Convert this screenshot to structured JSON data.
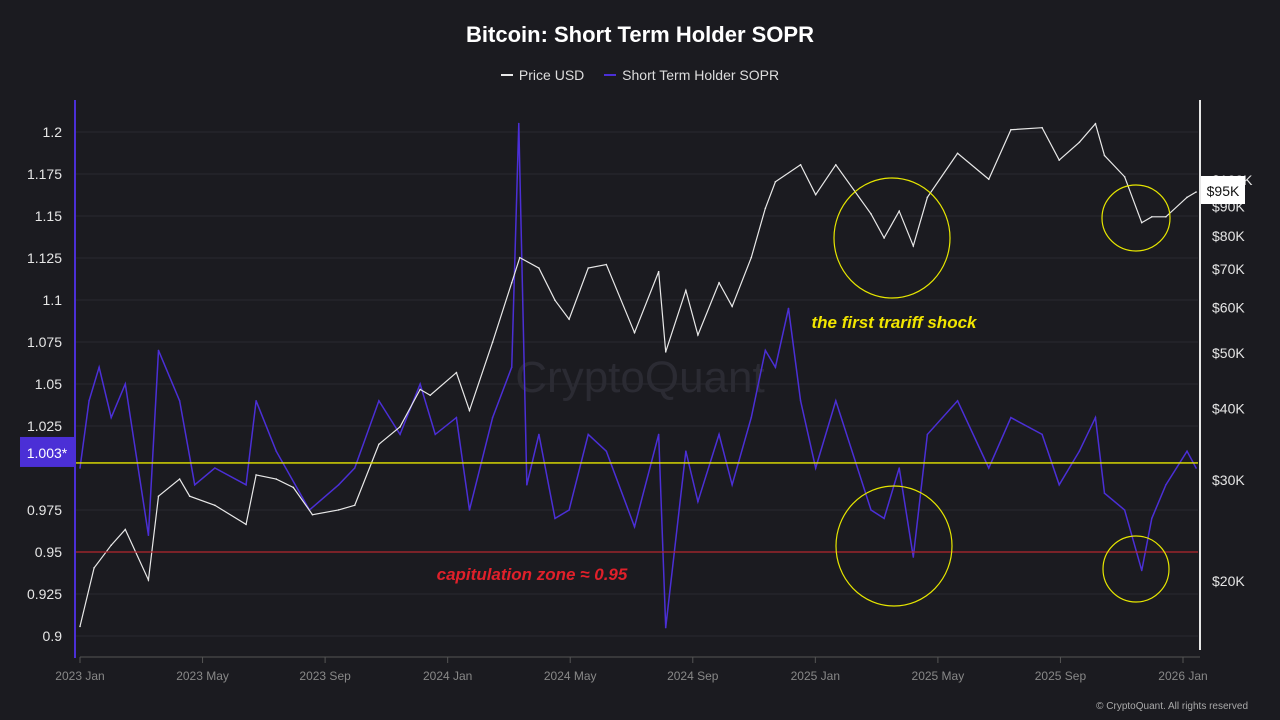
{
  "chart_data": {
    "type": "line",
    "title": "Bitcoin: Short Term Holder SOPR",
    "legend_position": "top",
    "grid": true,
    "x_ticks": [
      "2023 Jan",
      "2023 May",
      "2023 Sep",
      "2024 Jan",
      "2024 May",
      "2024 Sep",
      "2025 Jan",
      "2025 May",
      "2025 Sep",
      "2026 Jan"
    ],
    "left_axis": {
      "ticks": [
        "0.9",
        "0.925",
        "0.95",
        "0.975",
        "1.025",
        "1.05",
        "1.075",
        "1.1",
        "1.125",
        "1.15",
        "1.175",
        "1.2"
      ],
      "range": [
        0.9,
        1.2
      ],
      "current_label": "1.003*",
      "current_value": 1.003
    },
    "right_axis": {
      "scale": "log",
      "ticks": [
        [
          "$20K",
          20
        ],
        [
          "$30K",
          30
        ],
        [
          "$40K",
          40
        ],
        [
          "$50K",
          50
        ],
        [
          "$60K",
          60
        ],
        [
          "$70K",
          70
        ],
        [
          "$80K",
          80
        ],
        [
          "$90K",
          90
        ],
        [
          "$100K",
          100
        ]
      ],
      "current_label": "$95K"
    },
    "series": [
      {
        "name": "Price USD",
        "color": "#e8e8e8",
        "unit": "USD thousands",
        "points": [
          [
            "2023-01-01",
            16.6
          ],
          [
            "2023-01-15",
            21
          ],
          [
            "2023-02-01",
            23
          ],
          [
            "2023-02-15",
            24.5
          ],
          [
            "2023-03-10",
            20
          ],
          [
            "2023-03-20",
            28
          ],
          [
            "2023-04-10",
            30
          ],
          [
            "2023-04-20",
            28
          ],
          [
            "2023-05-15",
            27
          ],
          [
            "2023-06-15",
            25
          ],
          [
            "2023-06-25",
            30.5
          ],
          [
            "2023-07-15",
            30
          ],
          [
            "2023-08-01",
            29
          ],
          [
            "2023-08-20",
            26
          ],
          [
            "2023-09-15",
            26.5
          ],
          [
            "2023-10-01",
            27
          ],
          [
            "2023-10-25",
            34.5
          ],
          [
            "2023-11-15",
            37
          ],
          [
            "2023-12-05",
            43
          ],
          [
            "2023-12-15",
            42
          ],
          [
            "2024-01-10",
            46
          ],
          [
            "2024-01-23",
            39.5
          ],
          [
            "2024-02-15",
            52
          ],
          [
            "2024-03-05",
            66
          ],
          [
            "2024-03-13",
            73
          ],
          [
            "2024-04-01",
            70
          ],
          [
            "2024-04-17",
            61.5
          ],
          [
            "2024-05-01",
            57
          ],
          [
            "2024-05-20",
            70
          ],
          [
            "2024-06-07",
            71
          ],
          [
            "2024-07-05",
            54
          ],
          [
            "2024-07-29",
            69
          ],
          [
            "2024-08-05",
            50
          ],
          [
            "2024-08-25",
            64
          ],
          [
            "2024-09-06",
            53.5
          ],
          [
            "2024-09-27",
            66
          ],
          [
            "2024-10-10",
            60
          ],
          [
            "2024-10-29",
            73
          ],
          [
            "2024-11-12",
            89
          ],
          [
            "2024-11-22",
            99
          ],
          [
            "2024-12-17",
            106
          ],
          [
            "2025-01-01",
            94
          ],
          [
            "2025-01-21",
            106
          ],
          [
            "2025-02-25",
            87
          ],
          [
            "2025-03-10",
            79
          ],
          [
            "2025-03-25",
            88
          ],
          [
            "2025-04-08",
            76.5
          ],
          [
            "2025-04-22",
            93
          ],
          [
            "2025-05-22",
            111
          ],
          [
            "2025-06-22",
            100
          ],
          [
            "2025-07-14",
            122
          ],
          [
            "2025-08-14",
            123
          ],
          [
            "2025-08-31",
            108
          ],
          [
            "2025-09-20",
            116
          ],
          [
            "2025-10-06",
            125
          ],
          [
            "2025-10-15",
            110
          ],
          [
            "2025-11-04",
            101
          ],
          [
            "2025-11-21",
            84
          ],
          [
            "2025-12-01",
            86
          ],
          [
            "2025-12-15",
            86
          ],
          [
            "2026-01-05",
            93
          ],
          [
            "2026-01-14",
            95
          ]
        ]
      },
      {
        "name": "Short Term Holder SOPR",
        "color": "#4b2fd6",
        "points": [
          [
            "2023-01-01",
            1.0
          ],
          [
            "2023-01-10",
            1.04
          ],
          [
            "2023-01-20",
            1.06
          ],
          [
            "2023-02-01",
            1.03
          ],
          [
            "2023-02-15",
            1.05
          ],
          [
            "2023-03-10",
            0.96
          ],
          [
            "2023-03-20",
            1.07
          ],
          [
            "2023-04-10",
            1.04
          ],
          [
            "2023-04-25",
            0.99
          ],
          [
            "2023-05-15",
            1.0
          ],
          [
            "2023-06-15",
            0.99
          ],
          [
            "2023-06-25",
            1.04
          ],
          [
            "2023-07-15",
            1.01
          ],
          [
            "2023-08-17",
            0.975
          ],
          [
            "2023-09-15",
            0.99
          ],
          [
            "2023-10-01",
            1.0
          ],
          [
            "2023-10-25",
            1.04
          ],
          [
            "2023-11-15",
            1.02
          ],
          [
            "2023-12-05",
            1.05
          ],
          [
            "2023-12-20",
            1.02
          ],
          [
            "2024-01-10",
            1.03
          ],
          [
            "2024-01-23",
            0.975
          ],
          [
            "2024-02-15",
            1.03
          ],
          [
            "2024-03-05",
            1.06
          ],
          [
            "2024-03-12",
            1.205
          ],
          [
            "2024-03-20",
            0.99
          ],
          [
            "2024-04-01",
            1.02
          ],
          [
            "2024-04-17",
            0.97
          ],
          [
            "2024-05-01",
            0.975
          ],
          [
            "2024-05-20",
            1.02
          ],
          [
            "2024-06-07",
            1.01
          ],
          [
            "2024-07-05",
            0.965
          ],
          [
            "2024-07-29",
            1.02
          ],
          [
            "2024-08-05",
            0.905
          ],
          [
            "2024-08-25",
            1.01
          ],
          [
            "2024-09-06",
            0.98
          ],
          [
            "2024-09-27",
            1.02
          ],
          [
            "2024-10-10",
            0.99
          ],
          [
            "2024-10-29",
            1.03
          ],
          [
            "2024-11-12",
            1.07
          ],
          [
            "2024-11-22",
            1.06
          ],
          [
            "2024-12-05",
            1.095
          ],
          [
            "2024-12-17",
            1.04
          ],
          [
            "2025-01-01",
            1.0
          ],
          [
            "2025-01-21",
            1.04
          ],
          [
            "2025-02-25",
            0.975
          ],
          [
            "2025-03-10",
            0.97
          ],
          [
            "2025-03-25",
            1.0
          ],
          [
            "2025-04-08",
            0.947
          ],
          [
            "2025-04-22",
            1.02
          ],
          [
            "2025-05-22",
            1.04
          ],
          [
            "2025-06-22",
            1.0
          ],
          [
            "2025-07-14",
            1.03
          ],
          [
            "2025-08-14",
            1.02
          ],
          [
            "2025-08-31",
            0.99
          ],
          [
            "2025-09-20",
            1.01
          ],
          [
            "2025-10-06",
            1.03
          ],
          [
            "2025-10-15",
            0.985
          ],
          [
            "2025-11-04",
            0.975
          ],
          [
            "2025-11-21",
            0.939
          ],
          [
            "2025-12-01",
            0.97
          ],
          [
            "2025-12-15",
            0.99
          ],
          [
            "2026-01-05",
            1.01
          ],
          [
            "2026-01-14",
            1.0
          ]
        ]
      }
    ],
    "reference_lines": [
      {
        "value": 1.003,
        "color": "#e6e600"
      },
      {
        "value": 0.95,
        "color": "#b3262e"
      }
    ],
    "annotations": [
      {
        "text": "the first trariff shock",
        "color": "#f2e600"
      },
      {
        "text": "capitulation zone ≈ 0.95",
        "color": "#e0202a"
      }
    ],
    "highlight_circles": [
      "2025-04 price",
      "2025-11 price",
      "2025-04 SOPR",
      "2025-11 SOPR"
    ]
  },
  "watermark": "CryptoQuant",
  "credit": "© CryptoQuant. All rights reserved"
}
